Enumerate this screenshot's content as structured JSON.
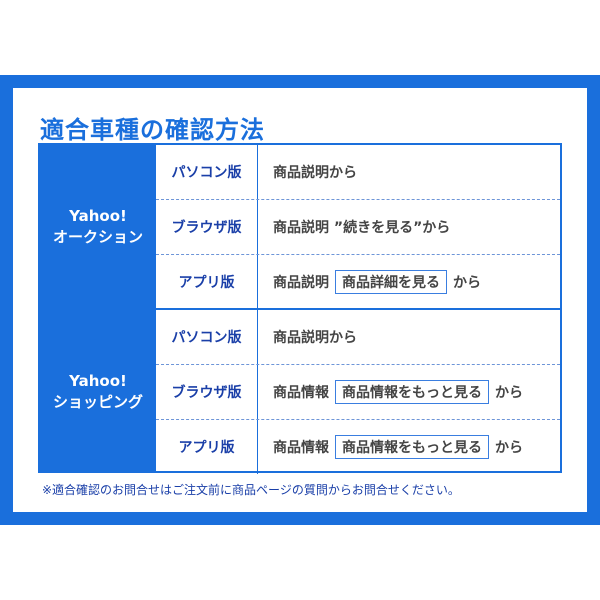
{
  "title": "適合車種の確認方法",
  "groups": [
    {
      "name_line1": "Yahoo!",
      "name_line2": "オークション",
      "rows": [
        {
          "platform": "パソコン版",
          "pre": "商品説明から",
          "button": "",
          "post": ""
        },
        {
          "platform": "ブラウザ版",
          "pre": "商品説明 ”続きを見る”から",
          "button": "",
          "post": ""
        },
        {
          "platform": "アプリ版",
          "pre": "商品説明",
          "button": "商品詳細を見る",
          "post": "から"
        }
      ]
    },
    {
      "name_line1": "Yahoo!",
      "name_line2": "ショッピング",
      "rows": [
        {
          "platform": "パソコン版",
          "pre": "商品説明から",
          "button": "",
          "post": ""
        },
        {
          "platform": "ブラウザ版",
          "pre": "商品情報",
          "button": "商品情報をもっと見る",
          "post": "から"
        },
        {
          "platform": "アプリ版",
          "pre": "商品情報",
          "button": "商品情報をもっと見る",
          "post": "から"
        }
      ]
    }
  ],
  "note": "※適合確認のお問合せはご注文前に商品ページの質問からお問合せください。",
  "colors": {
    "accent": "#1a6fdc",
    "platform_text": "#1a3fa8",
    "body_text": "#444444"
  }
}
